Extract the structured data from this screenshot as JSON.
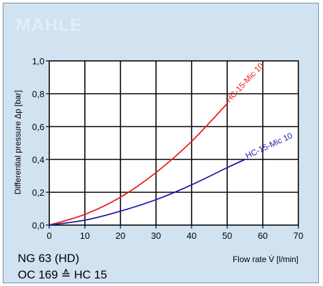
{
  "logo": "MAHLE",
  "caption": {
    "line1": "NG 63 (HD)",
    "line2": "OC 169 ≙ HC 15"
  },
  "colors": {
    "background": "#d1e2f1",
    "grid": "#000000",
    "series_red": "#ee1c1c",
    "series_blue": "#1a1aa6"
  },
  "chart_data": {
    "type": "line",
    "title": "",
    "xlabel": "Flow rate V̇ [l/min]",
    "ylabel": "Differential pressure Δp [bar]",
    "xlim": [
      0,
      70
    ],
    "ylim": [
      0,
      1.0
    ],
    "x_ticks": [
      "0",
      "10",
      "20",
      "30",
      "40",
      "50",
      "60",
      "70"
    ],
    "y_ticks": [
      "0,0",
      "0,2",
      "0,4",
      "0,6",
      "0,8",
      "1,0"
    ],
    "grid": true,
    "series": [
      {
        "name": "HC-15-Mic 10",
        "color": "#ee1c1c",
        "x": [
          0,
          10,
          20,
          30,
          40,
          50
        ],
        "y": [
          0,
          0.065,
          0.17,
          0.32,
          0.51,
          0.74
        ]
      },
      {
        "name": "HC-15-Mic 10",
        "color": "#1a1aa6",
        "x": [
          0,
          10,
          20,
          30,
          40,
          50,
          55
        ],
        "y": [
          0,
          0.03,
          0.085,
          0.155,
          0.245,
          0.35,
          0.4
        ]
      }
    ]
  }
}
